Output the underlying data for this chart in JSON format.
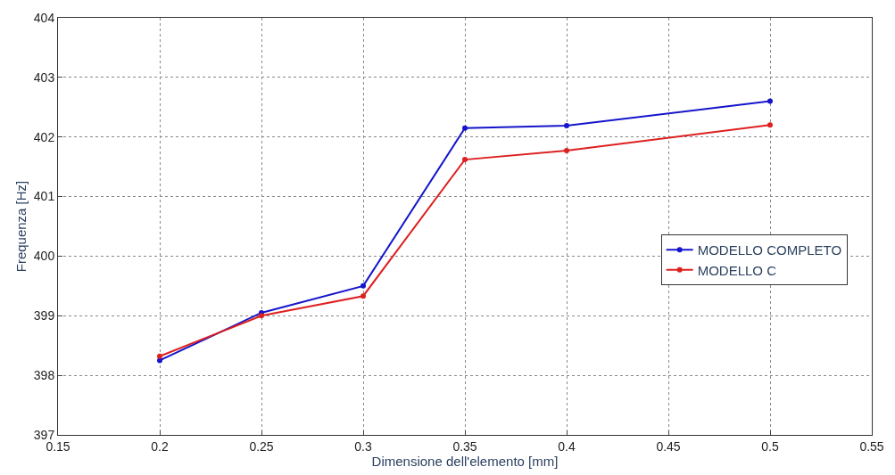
{
  "chart_data": {
    "type": "line",
    "xlabel": "Dimensione dell'elemento [mm]",
    "ylabel": "Frequenza [Hz]",
    "x": [
      0.2,
      0.25,
      0.3,
      0.35,
      0.4,
      0.5
    ],
    "series": [
      {
        "name": "MODELLO COMPLETO",
        "color": "#1515cc",
        "values": [
          398.25,
          399.05,
          399.5,
          402.15,
          402.19,
          402.6
        ]
      },
      {
        "name": "MODELLO C",
        "color": "#dd2020",
        "values": [
          398.32,
          399.0,
          399.33,
          401.62,
          401.77,
          402.2
        ]
      }
    ],
    "xlim": [
      0.15,
      0.55
    ],
    "xticks": [
      0.15,
      0.2,
      0.25,
      0.3,
      0.35,
      0.4,
      0.45,
      0.5,
      0.55
    ],
    "ylim": [
      397,
      404
    ],
    "yticks": [
      397,
      398,
      399,
      400,
      401,
      402,
      403,
      404
    ],
    "grid": true,
    "legend": "right",
    "marker": "circle",
    "line_style": "solid"
  }
}
